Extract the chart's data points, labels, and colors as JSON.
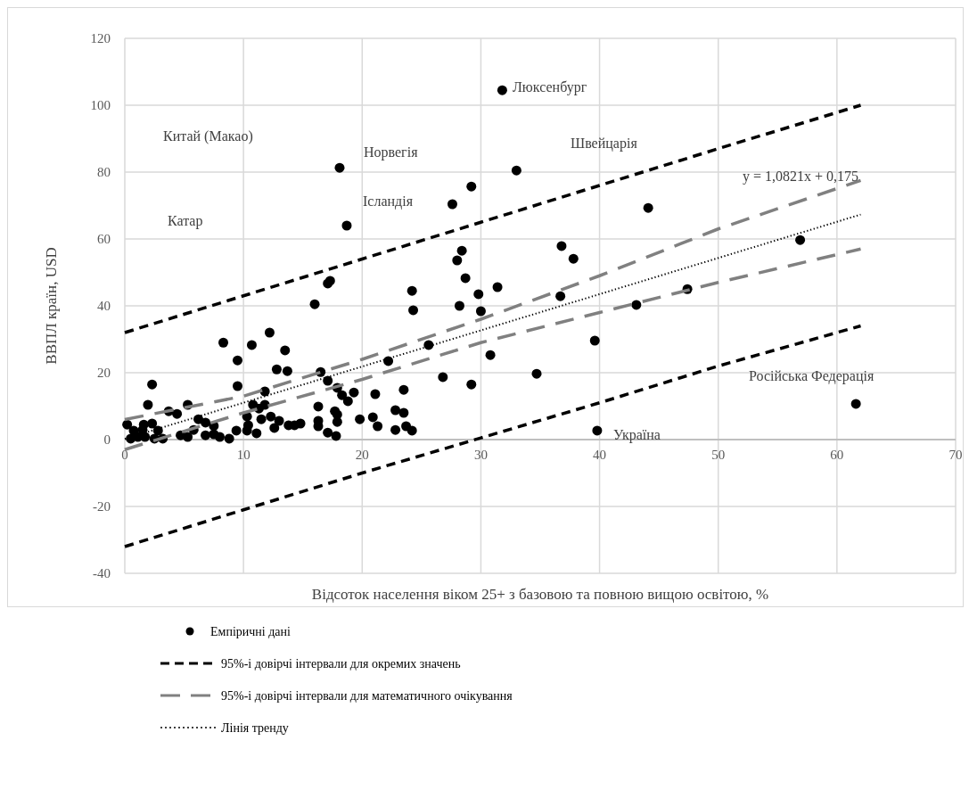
{
  "chart_data": {
    "type": "scatter",
    "xlabel": "Відсоток населення віком 25+ з базовою та повною вищою освітою, %",
    "ylabel": "ВВПЛ країн, USD",
    "xlim": [
      0,
      70
    ],
    "xticks": [
      0,
      10,
      20,
      30,
      40,
      50,
      60,
      70
    ],
    "ylim": [
      -40,
      120
    ],
    "yticks": [
      -40,
      -20,
      0,
      20,
      40,
      60,
      80,
      100,
      120
    ],
    "grid": true,
    "legend": "bottom",
    "series": [
      {
        "name": "Емпіричні дані",
        "marker": "circle",
        "color": "#000000",
        "x": [
          16.0,
          12.2,
          8.3,
          10.7,
          13.5,
          9.5,
          12.8,
          13.7,
          16.5,
          2.3,
          9.5,
          11.8,
          17.1,
          17.9,
          18.3,
          1.95,
          5.3,
          3.7,
          4.4,
          10.8,
          11.8,
          11.3,
          16.3,
          17.7,
          17.9,
          10.3,
          0.2,
          1.6,
          2.3,
          6.2,
          6.8,
          7.5,
          11.5,
          12.3,
          13.0,
          14.3,
          14.8,
          16.3,
          16.3,
          17.9,
          12.6,
          10.4,
          9.4,
          11.1,
          17.1,
          17.8,
          8.8,
          8.0,
          6.8,
          5.3,
          4.7,
          3.2,
          2.5,
          1.7,
          1.1,
          0.5,
          1.5,
          2.8,
          0.75,
          5.8,
          7.5,
          10.3,
          13.8,
          31.8,
          18.1,
          33.0,
          29.2,
          27.6,
          18.7,
          36.8,
          37.8,
          28.4,
          28.0,
          28.7,
          17.3,
          17.1,
          24.2,
          24.3,
          28.2,
          29.8,
          31.4,
          30.0,
          36.7,
          25.6,
          22.2,
          30.8,
          26.8,
          29.2,
          34.7,
          23.5,
          21.1,
          19.3,
          18.8,
          19.8,
          20.9,
          21.3,
          22.8,
          23.5,
          22.8,
          23.7,
          24.2,
          44.1,
          56.9,
          47.4,
          43.1,
          39.6,
          61.6,
          39.8
        ],
        "values": [
          40.5,
          32,
          29,
          28.3,
          26.7,
          23.7,
          21,
          20.5,
          20.2,
          16.5,
          16,
          14.4,
          17.6,
          15.5,
          13.3,
          10.4,
          10.4,
          8.5,
          7.7,
          10.4,
          10.4,
          9.3,
          9.9,
          8.5,
          7.5,
          6.9,
          4.5,
          4.5,
          4.8,
          6.1,
          5.1,
          4.1,
          6.1,
          6.9,
          5.6,
          4.3,
          4.8,
          5.6,
          4.0,
          5.3,
          3.5,
          4.3,
          2.7,
          1.9,
          2.1,
          1.1,
          0.3,
          0.8,
          1.3,
          0.8,
          1.3,
          0.3,
          0.3,
          0.8,
          0.8,
          0.3,
          2.9,
          2.7,
          2.7,
          2.9,
          1.6,
          2.7,
          4.3,
          104.5,
          81.3,
          80.5,
          75.7,
          70.4,
          64,
          57.9,
          54.1,
          56.5,
          53.6,
          48.3,
          47.5,
          46.7,
          44.5,
          38.7,
          40,
          43.5,
          45.6,
          38.4,
          42.9,
          28.3,
          23.5,
          25.3,
          18.7,
          16.5,
          19.7,
          14.9,
          13.6,
          14.1,
          11.5,
          6.1,
          6.7,
          4.0,
          8.8,
          8.0,
          2.9,
          4.0,
          2.7,
          69.3,
          59.7,
          45,
          40.3,
          29.6,
          10.7,
          2.7
        ]
      },
      {
        "name": "95%-і довірчі інтервали для окремих значень",
        "type": "line",
        "line_style": "dashed",
        "color": "#000000",
        "x": [
          0,
          10,
          20,
          30,
          40,
          50,
          62
        ],
        "values": [
          32,
          43,
          54,
          65,
          76,
          87,
          100
        ]
      },
      {
        "type": "line",
        "line_style": "dashed",
        "color": "#000000",
        "x": [
          0,
          10,
          20,
          30,
          40,
          50,
          62
        ],
        "values": [
          -32,
          -21,
          -10,
          0.5,
          11,
          22,
          34
        ]
      },
      {
        "name": "95%-і довірчі інтервали для математичного очікування",
        "type": "line",
        "line_style": "longdash",
        "color": "#808080",
        "x": [
          0,
          10,
          20,
          30,
          40,
          50,
          62
        ],
        "values": [
          6,
          13,
          24,
          36,
          49,
          63,
          77.5
        ]
      },
      {
        "type": "line",
        "line_style": "longdash",
        "color": "#808080",
        "x": [
          0,
          10,
          20,
          30,
          40,
          50,
          62
        ],
        "values": [
          -3,
          8,
          18,
          29,
          38,
          47,
          57
        ]
      },
      {
        "name": "Лінія тренду",
        "type": "line",
        "line_style": "dotted",
        "color": "#000000",
        "x": [
          0,
          62
        ],
        "values": [
          0.2,
          67.3
        ]
      }
    ],
    "annotations": [
      "Люксенбург",
      "Китай (Макао)",
      "Норвегія",
      "Швейцарія",
      "Ісландія",
      "Катар",
      "y = 1,0821x + 0,175",
      "Російська Федерація",
      "Україна"
    ]
  }
}
